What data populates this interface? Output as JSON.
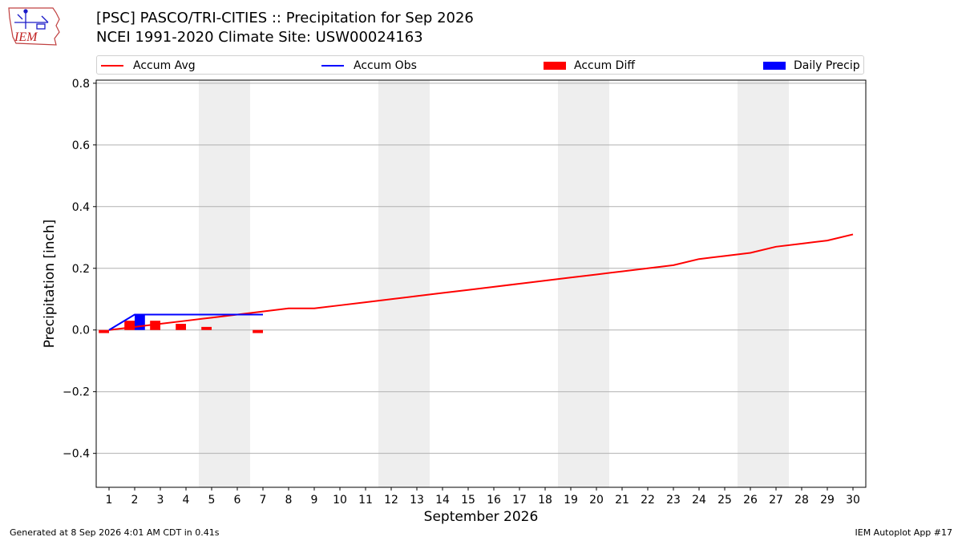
{
  "header": {
    "title_line1": "[PSC] PASCO/TRI-CITIES :: Precipitation for Sep 2026",
    "title_line2": "NCEI 1991-2020 Climate Site: USW00024163"
  },
  "logo": {
    "text": "IEM"
  },
  "footer": {
    "generated": "Generated at 8 Sep 2026 4:01 AM CDT in 0.41s",
    "app": "IEM Autoplot App #17"
  },
  "colors": {
    "accum_avg": "#ff0000",
    "accum_obs": "#0000ff",
    "accum_diff": "#ff0000",
    "daily_precip": "#0000ff",
    "weekend_shade": "#eeeeee",
    "grid": "#b0b0b0"
  },
  "chart_data": {
    "type": "bar",
    "title": "[PSC] PASCO/TRI-CITIES :: Precipitation for Sep 2026",
    "subtitle": "NCEI 1991-2020 Climate Site: USW00024163",
    "xlabel": "September 2026",
    "ylabel": "Precipitation [inch]",
    "xlim": [
      0.5,
      30.5
    ],
    "ylim": [
      -0.51,
      0.81
    ],
    "yticks": [
      -0.4,
      -0.2,
      0.0,
      0.2,
      0.4,
      0.6,
      0.8
    ],
    "ytick_labels": [
      "−0.4",
      "−0.2",
      "0.0",
      "0.2",
      "0.4",
      "0.6",
      "0.8"
    ],
    "xticks": [
      1,
      2,
      3,
      4,
      5,
      6,
      7,
      8,
      9,
      10,
      11,
      12,
      13,
      14,
      15,
      16,
      17,
      18,
      19,
      20,
      21,
      22,
      23,
      24,
      25,
      26,
      27,
      28,
      29,
      30
    ],
    "grid": "horizontal",
    "legend_placement": "top",
    "weekend_spans": [
      [
        5,
        6
      ],
      [
        12,
        13
      ],
      [
        19,
        20
      ],
      [
        26,
        27
      ]
    ],
    "legend": [
      "Accum Avg",
      "Accum Obs",
      "Accum Diff",
      "Daily Precip"
    ],
    "series": [
      {
        "name": "Accum Avg",
        "kind": "line",
        "x": [
          1,
          2,
          3,
          4,
          5,
          6,
          7,
          8,
          9,
          10,
          11,
          12,
          13,
          14,
          15,
          16,
          17,
          18,
          19,
          20,
          21,
          22,
          23,
          24,
          25,
          26,
          27,
          28,
          29,
          30
        ],
        "values": [
          0.0,
          0.01,
          0.02,
          0.03,
          0.04,
          0.05,
          0.06,
          0.07,
          0.07,
          0.08,
          0.09,
          0.1,
          0.11,
          0.12,
          0.13,
          0.14,
          0.15,
          0.16,
          0.17,
          0.18,
          0.19,
          0.2,
          0.21,
          0.23,
          0.24,
          0.25,
          0.27,
          0.28,
          0.29,
          0.31
        ]
      },
      {
        "name": "Accum Obs",
        "kind": "line",
        "x": [
          1,
          2,
          3,
          4,
          5,
          6,
          7
        ],
        "values": [
          0.0,
          0.05,
          0.05,
          0.05,
          0.05,
          0.05,
          0.05
        ]
      },
      {
        "name": "Accum Diff",
        "kind": "bar",
        "x": [
          1,
          2,
          3,
          4,
          5,
          6,
          7
        ],
        "values": [
          -0.01,
          0.03,
          0.03,
          0.02,
          0.01,
          0.0,
          -0.01
        ]
      },
      {
        "name": "Daily Precip",
        "kind": "bar",
        "x": [
          1,
          2,
          3,
          4,
          5,
          6,
          7
        ],
        "values": [
          0.0,
          0.05,
          0.0,
          0.0,
          0.0,
          0.0,
          0.0
        ]
      }
    ]
  }
}
